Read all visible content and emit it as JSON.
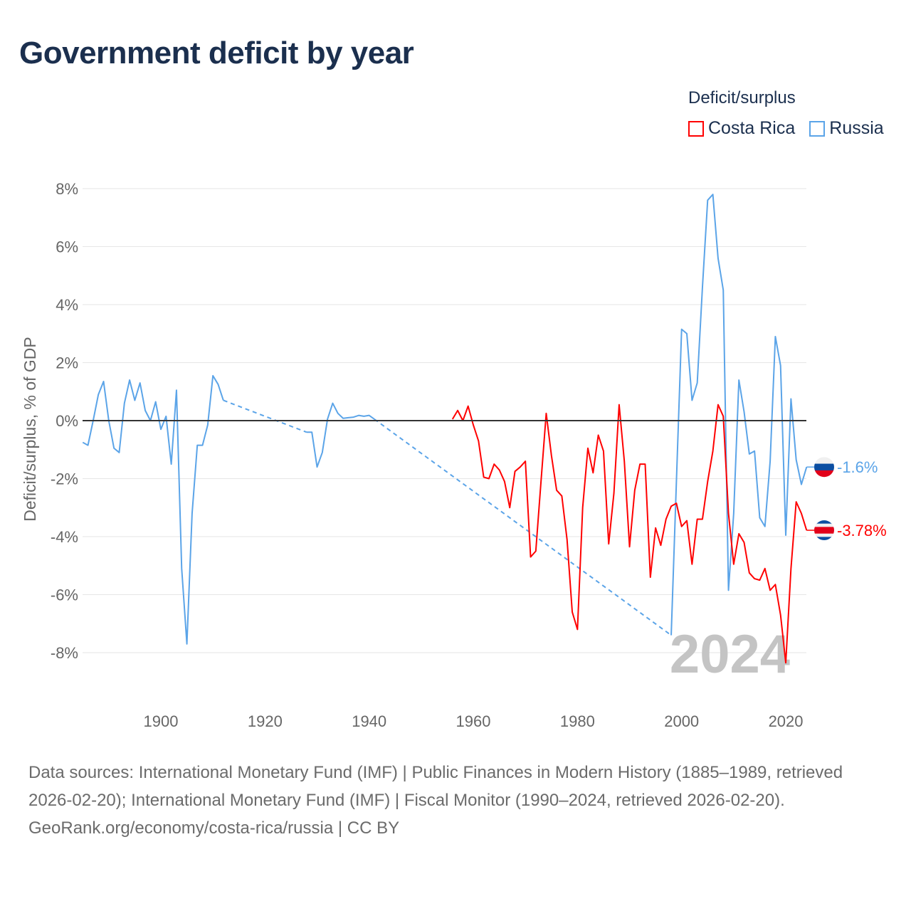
{
  "title": "Government deficit by year",
  "legend": {
    "title": "Deficit/surplus",
    "items": [
      {
        "label": "Costa Rica",
        "color": "#ff0000"
      },
      {
        "label": "Russia",
        "color": "#5ba4e8"
      }
    ]
  },
  "footer": {
    "sources": "Data sources: International Monetary Fund (IMF) | Public Finances in Modern History (1885–1989, retrieved 2026-02-20); International Monetary Fund (IMF) | Fiscal Monitor (1990–2024, retrieved 2026-02-20).",
    "credit": "GeoRank.org/economy/costa-rica/russia | CC BY"
  },
  "chart_data": {
    "type": "line",
    "title": "Government deficit by year",
    "ylabel": "Deficit/surplus, % of GDP",
    "xlabel": "",
    "xlim": [
      1885,
      2024
    ],
    "ylim": [
      -9,
      9
    ],
    "yticks": [
      -8,
      -6,
      -4,
      -2,
      0,
      2,
      4,
      6,
      8
    ],
    "ytick_labels": [
      "-8%",
      "-6%",
      "-4%",
      "-2%",
      "0%",
      "2%",
      "4%",
      "6%",
      "8%"
    ],
    "xticks": [
      1900,
      1920,
      1940,
      1960,
      1980,
      2000,
      2020
    ],
    "xtick_labels": [
      "1900",
      "1920",
      "1940",
      "1960",
      "1980",
      "2000",
      "2020"
    ],
    "year_watermark": "2024",
    "grid": true,
    "series": [
      {
        "name": "Russia",
        "color": "#5ba4e8",
        "end_label": "-1.6%",
        "flag": "russia",
        "points": [
          [
            1885,
            -0.75
          ],
          [
            1886,
            -0.85
          ],
          [
            1887,
            0.0
          ],
          [
            1888,
            0.9
          ],
          [
            1889,
            1.35
          ],
          [
            1890,
            0.0
          ],
          [
            1891,
            -0.95
          ],
          [
            1892,
            -1.1
          ],
          [
            1893,
            0.6
          ],
          [
            1894,
            1.4
          ],
          [
            1895,
            0.7
          ],
          [
            1896,
            1.3
          ],
          [
            1897,
            0.35
          ],
          [
            1898,
            0.0
          ],
          [
            1899,
            0.65
          ],
          [
            1900,
            -0.3
          ],
          [
            1901,
            0.15
          ],
          [
            1902,
            -1.5
          ],
          [
            1903,
            1.05
          ],
          [
            1904,
            -5.1
          ],
          [
            1905,
            -7.7
          ],
          [
            1906,
            -3.2
          ],
          [
            1907,
            -0.85
          ],
          [
            1908,
            -0.85
          ],
          [
            1909,
            -0.15
          ],
          [
            1910,
            1.55
          ],
          [
            1911,
            1.25
          ],
          [
            1912,
            0.7
          ],
          null,
          [
            1928,
            -0.4
          ],
          [
            1929,
            -0.4
          ],
          [
            1930,
            -1.6
          ],
          [
            1931,
            -1.1
          ],
          [
            1932,
            0.05
          ],
          [
            1933,
            0.6
          ],
          [
            1934,
            0.25
          ],
          [
            1935,
            0.08
          ],
          [
            1936,
            0.1
          ],
          [
            1937,
            0.12
          ],
          [
            1938,
            0.18
          ],
          [
            1939,
            0.15
          ],
          [
            1940,
            0.18
          ],
          [
            1941,
            0.05
          ],
          null,
          [
            1998,
            -7.4
          ],
          [
            1999,
            -2.1
          ],
          [
            2000,
            3.15
          ],
          [
            2001,
            3.0
          ],
          [
            2002,
            0.7
          ],
          [
            2003,
            1.3
          ],
          [
            2004,
            4.6
          ],
          [
            2005,
            7.6
          ],
          [
            2006,
            7.8
          ],
          [
            2007,
            5.6
          ],
          [
            2008,
            4.5
          ],
          [
            2009,
            -5.85
          ],
          [
            2010,
            -3.2
          ],
          [
            2011,
            1.4
          ],
          [
            2012,
            0.3
          ],
          [
            2013,
            -1.15
          ],
          [
            2014,
            -1.05
          ],
          [
            2015,
            -3.35
          ],
          [
            2016,
            -3.65
          ],
          [
            2017,
            -1.4
          ],
          [
            2018,
            2.9
          ],
          [
            2019,
            1.9
          ],
          [
            2020,
            -3.95
          ],
          [
            2021,
            0.75
          ],
          [
            2022,
            -1.35
          ],
          [
            2023,
            -2.2
          ],
          [
            2024,
            -1.6
          ]
        ]
      },
      {
        "name": "Costa Rica",
        "color": "#ff0000",
        "end_label": "-3.78%",
        "flag": "costa-rica",
        "points": [
          [
            1956,
            0.05
          ],
          [
            1957,
            0.35
          ],
          [
            1958,
            0.0
          ],
          [
            1959,
            0.5
          ],
          [
            1960,
            -0.15
          ],
          [
            1961,
            -0.7
          ],
          [
            1962,
            -1.95
          ],
          [
            1963,
            -2.0
          ],
          [
            1964,
            -1.5
          ],
          [
            1965,
            -1.7
          ],
          [
            1966,
            -2.1
          ],
          [
            1967,
            -3.0
          ],
          [
            1968,
            -1.75
          ],
          [
            1969,
            -1.6
          ],
          [
            1970,
            -1.4
          ],
          [
            1971,
            -4.7
          ],
          [
            1972,
            -4.5
          ],
          [
            1973,
            -2.1
          ],
          [
            1974,
            0.25
          ],
          [
            1975,
            -1.2
          ],
          [
            1976,
            -2.4
          ],
          [
            1977,
            -2.6
          ],
          [
            1978,
            -4.1
          ],
          [
            1979,
            -6.6
          ],
          [
            1980,
            -7.2
          ],
          [
            1981,
            -3.0
          ],
          [
            1982,
            -0.95
          ],
          [
            1983,
            -1.8
          ],
          [
            1984,
            -0.5
          ],
          [
            1985,
            -1.05
          ],
          [
            1986,
            -4.25
          ],
          [
            1987,
            -2.5
          ],
          [
            1988,
            0.55
          ],
          [
            1989,
            -1.4
          ],
          [
            1990,
            -4.35
          ],
          [
            1991,
            -2.4
          ],
          [
            1992,
            -1.5
          ],
          [
            1993,
            -1.5
          ],
          [
            1994,
            -5.4
          ],
          [
            1995,
            -3.7
          ],
          [
            1996,
            -4.3
          ],
          [
            1997,
            -3.4
          ],
          [
            1998,
            -2.95
          ],
          [
            1999,
            -2.85
          ],
          [
            2000,
            -3.65
          ],
          [
            2001,
            -3.45
          ],
          [
            2002,
            -4.95
          ],
          [
            2003,
            -3.4
          ],
          [
            2004,
            -3.4
          ],
          [
            2005,
            -2.1
          ],
          [
            2006,
            -1.05
          ],
          [
            2007,
            0.55
          ],
          [
            2008,
            0.15
          ],
          [
            2009,
            -3.2
          ],
          [
            2010,
            -4.95
          ],
          [
            2011,
            -3.9
          ],
          [
            2012,
            -4.2
          ],
          [
            2013,
            -5.25
          ],
          [
            2014,
            -5.45
          ],
          [
            2015,
            -5.5
          ],
          [
            2016,
            -5.1
          ],
          [
            2017,
            -5.85
          ],
          [
            2018,
            -5.65
          ],
          [
            2019,
            -6.7
          ],
          [
            2020,
            -8.35
          ],
          [
            2021,
            -5.1
          ],
          [
            2022,
            -2.8
          ],
          [
            2023,
            -3.2
          ],
          [
            2024,
            -3.78
          ]
        ]
      }
    ]
  }
}
